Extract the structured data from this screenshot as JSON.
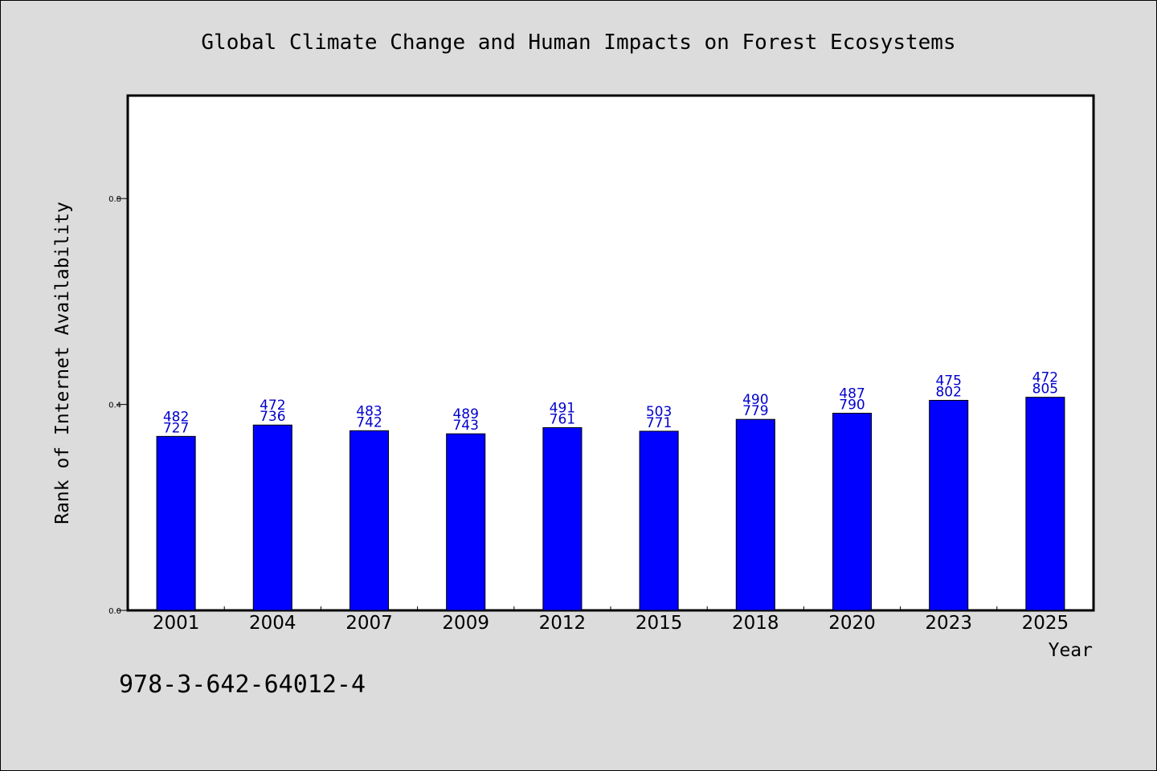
{
  "chart_data": {
    "type": "bar",
    "title": "Global Climate Change and Human Impacts on Forest Ecosystems",
    "xlabel": "Year",
    "ylabel": "Rank of Internet Availability",
    "ylim": [
      0,
      1
    ],
    "yticks": [
      "0.0",
      "0.4",
      "0.8"
    ],
    "grid": false,
    "legend": "none",
    "categories": [
      "2001",
      "2004",
      "2007",
      "2009",
      "2012",
      "2015",
      "2018",
      "2020",
      "2023",
      "2025"
    ],
    "values": [
      0.338,
      0.36,
      0.349,
      0.343,
      0.355,
      0.348,
      0.371,
      0.383,
      0.408,
      0.414
    ],
    "label_top": [
      "482",
      "472",
      "483",
      "489",
      "491",
      "503",
      "490",
      "487",
      "475",
      "472"
    ],
    "label_bottom": [
      "727",
      "736",
      "742",
      "743",
      "761",
      "771",
      "779",
      "790",
      "802",
      "805"
    ],
    "bar_color": "#0000ff",
    "label_color": "#0000cc",
    "isbn": "978-3-642-64012-4"
  }
}
